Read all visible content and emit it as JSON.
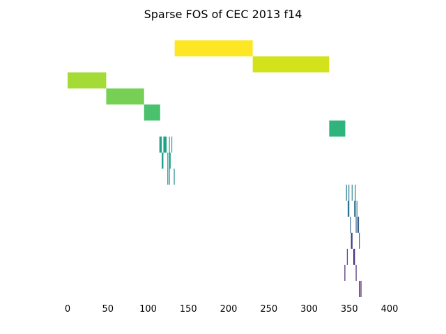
{
  "chart_data": {
    "type": "heatmap",
    "title": "Sparse FOS of CEC 2013 f14",
    "xlabel": "",
    "ylabel": "",
    "xlim": [
      0,
      400
    ],
    "x_ticks": [
      0,
      50,
      100,
      150,
      200,
      250,
      300,
      350,
      400
    ],
    "x_tick_labels": [
      "0",
      "50",
      "100",
      "150",
      "200",
      "250",
      "300",
      "350",
      "400"
    ],
    "grid": false,
    "colormap": "viridis",
    "n_rows": 16,
    "rows": [
      {
        "row": 0,
        "segments": [
          [
            133,
            230
          ]
        ],
        "color": "#fde725"
      },
      {
        "row": 1,
        "segments": [
          [
            230,
            325
          ]
        ],
        "color": "#d2e21b"
      },
      {
        "row": 2,
        "segments": [
          [
            0,
            48
          ]
        ],
        "color": "#a5db36"
      },
      {
        "row": 3,
        "segments": [
          [
            48,
            95
          ]
        ],
        "color": "#75d054"
      },
      {
        "row": 4,
        "segments": [
          [
            95,
            115
          ]
        ],
        "color": "#4ac16d"
      },
      {
        "row": 5,
        "segments": [
          [
            325,
            345
          ]
        ],
        "color": "#2fb47c"
      },
      {
        "row": 6,
        "segments": [
          [
            114,
            117
          ],
          [
            119,
            123
          ],
          [
            126,
            127
          ],
          [
            129,
            130
          ]
        ],
        "color": "#1fa187"
      },
      {
        "row": 7,
        "segments": [
          [
            117,
            119
          ],
          [
            124,
            125
          ],
          [
            126,
            128
          ]
        ],
        "color": "#1e9b8a"
      },
      {
        "row": 8,
        "segments": [
          [
            124,
            125
          ],
          [
            126,
            127
          ],
          [
            132,
            133
          ]
        ],
        "color": "#23898e"
      },
      {
        "row": 9,
        "segments": [
          [
            346,
            347
          ],
          [
            349,
            350
          ],
          [
            353,
            354
          ],
          [
            357,
            358
          ]
        ],
        "color": "#287d8e"
      },
      {
        "row": 10,
        "segments": [
          [
            348,
            350
          ],
          [
            356,
            358
          ],
          [
            359,
            360
          ]
        ],
        "color": "#2d708e"
      },
      {
        "row": 11,
        "segments": [
          [
            351,
            352
          ],
          [
            358,
            359
          ],
          [
            360,
            362
          ]
        ],
        "color": "#355f8d"
      },
      {
        "row": 12,
        "segments": [
          [
            352,
            354
          ],
          [
            362,
            363
          ]
        ],
        "color": "#3f4889"
      },
      {
        "row": 13,
        "segments": [
          [
            347,
            348
          ],
          [
            355,
            357
          ]
        ],
        "color": "#462f7e"
      },
      {
        "row": 14,
        "segments": [
          [
            344,
            345
          ],
          [
            358,
            359
          ]
        ],
        "color": "#481f70"
      },
      {
        "row": 15,
        "segments": [
          [
            362,
            363
          ],
          [
            364,
            365
          ]
        ],
        "color": "#440154"
      }
    ]
  }
}
